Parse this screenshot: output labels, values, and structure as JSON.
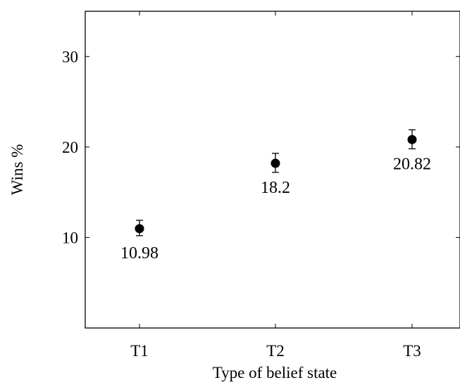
{
  "chart_data": {
    "type": "scatter",
    "categories": [
      "T1",
      "T2",
      "T3"
    ],
    "series": [
      {
        "values": [
          10.98,
          18.2,
          20.82
        ],
        "error_low": [
          10.2,
          17.2,
          19.8
        ],
        "error_high": [
          11.9,
          19.3,
          21.9
        ],
        "data_labels": [
          "10.98",
          "18.2",
          "20.82"
        ],
        "marker": "filled-circle",
        "color": "#000000"
      }
    ],
    "xlabel": "Type of belief state",
    "ylabel": "Wins %",
    "yticks": [
      10,
      20,
      30
    ],
    "ylim": [
      0,
      35
    ],
    "grid": false,
    "legend": "none"
  }
}
